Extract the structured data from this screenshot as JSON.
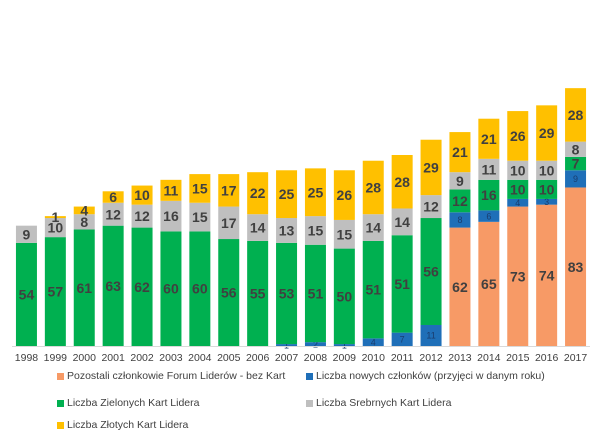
{
  "chart_data": {
    "type": "bar",
    "stacked": true,
    "categories": [
      "1998",
      "1999",
      "2000",
      "2001",
      "2002",
      "2003",
      "2004",
      "2005",
      "2006",
      "2007",
      "2008",
      "2009",
      "2010",
      "2011",
      "2012",
      "2013",
      "2014",
      "2015",
      "2016",
      "2017"
    ],
    "series": [
      {
        "name": "Pozostali członkowie Forum Liderów - bez Kart",
        "color": "#F79A66",
        "values": [
          0,
          0,
          0,
          0,
          0,
          0,
          0,
          0,
          0,
          0,
          0,
          0,
          0,
          0,
          0,
          62,
          65,
          73,
          74,
          83
        ]
      },
      {
        "name": "Liczba nowych członków (przyjęci w danym roku)",
        "color": "#1F6FB8",
        "values": [
          0,
          0,
          0,
          0,
          0,
          0,
          0,
          0,
          0,
          1,
          2,
          1,
          4,
          7,
          11,
          8,
          6,
          4,
          3,
          9
        ]
      },
      {
        "name": "Liczba Zielonych Kart Lidera",
        "color": "#00B050",
        "values": [
          54,
          57,
          61,
          63,
          62,
          60,
          60,
          56,
          55,
          53,
          51,
          50,
          51,
          51,
          56,
          12,
          16,
          10,
          10,
          7
        ]
      },
      {
        "name": "Liczba Srebrnych Kart Lidera",
        "color": "#BFBFBF",
        "values": [
          9,
          10,
          8,
          12,
          12,
          16,
          15,
          17,
          14,
          13,
          15,
          15,
          14,
          14,
          12,
          9,
          11,
          10,
          10,
          8
        ]
      },
      {
        "name": "Liczba Złotych Kart Lidera",
        "color": "#FFC000",
        "values": [
          0,
          1,
          4,
          6,
          10,
          11,
          15,
          17,
          22,
          25,
          25,
          26,
          28,
          28,
          29,
          21,
          21,
          26,
          29,
          28
        ]
      }
    ],
    "data_labels": {
      "Pozostali członkowie Forum Liderów - bez Kart": [
        "",
        "",
        "",
        "",
        "",
        "",
        "",
        "",
        "",
        "",
        "",
        "",
        "",
        "",
        "",
        "62",
        "65",
        "73",
        "74",
        "83"
      ],
      "Liczba nowych członków (przyjęci w danym roku)": [
        "",
        "",
        "",
        "",
        "",
        "",
        "",
        "",
        "",
        "1",
        "2",
        "1",
        "4",
        "7",
        "11",
        "8",
        "6",
        "4",
        "3",
        "9"
      ],
      "Liczba Zielonych Kart Lidera": [
        "54",
        "57",
        "61",
        "63",
        "62",
        "60",
        "60",
        "56",
        "55",
        "53",
        "51",
        "50",
        "51",
        "51",
        "56",
        "12",
        "16",
        "10",
        "10",
        "7"
      ],
      "Liczba Srebrnych Kart Lidera": [
        "9",
        "10",
        "8",
        "12",
        "12",
        "16",
        "15",
        "17",
        "14",
        "13",
        "15",
        "15",
        "14",
        "14",
        "12",
        "9",
        "11",
        "10",
        "10",
        "8"
      ],
      "Liczba Złotych Kart Lidera": [
        "",
        "1",
        "4",
        "6",
        "10",
        "11",
        "15",
        "17",
        "22",
        "25",
        "25",
        "26",
        "28",
        "28",
        "29",
        "21",
        "21",
        "26",
        "29",
        "28"
      ]
    },
    "ylim": [
      0,
      130
    ],
    "gridlines": false,
    "legend_position": "bottom"
  },
  "legend": {
    "items": [
      {
        "label": "Pozostali członkowie Forum Liderów - bez Kart",
        "color": "#F79A66"
      },
      {
        "label": "Liczba nowych członków (przyjęci w danym roku)",
        "color": "#1F6FB8"
      },
      {
        "label": "Liczba Zielonych Kart Lidera",
        "color": "#00B050"
      },
      {
        "label": "Liczba Srebrnych Kart Lidera",
        "color": "#BFBFBF"
      },
      {
        "label": "Liczba Złotych Kart Lidera",
        "color": "#FFC000"
      }
    ]
  }
}
